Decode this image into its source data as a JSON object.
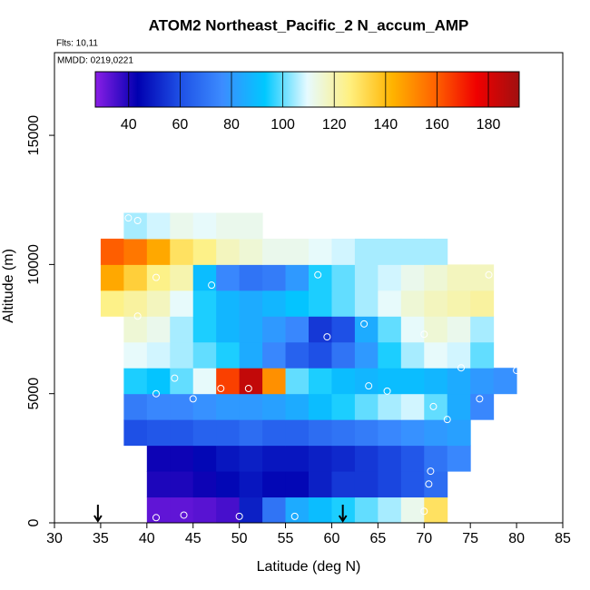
{
  "chart_data": {
    "type": "heatmap",
    "title": "ATOM2 Northeast_Pacific_2 N_accum_AMP",
    "flights": "Flts: 10,11",
    "dates": "MMDD: 0219,0221",
    "xlabel": "Latitude (deg N)",
    "ylabel": "Altitude (m)",
    "xlim": [
      30,
      85
    ],
    "xticks": [
      30,
      35,
      40,
      45,
      50,
      55,
      60,
      65,
      70,
      75,
      80,
      85
    ],
    "ylim": [
      0,
      18200
    ],
    "yticks": [
      0,
      5000,
      10000,
      15000
    ],
    "xbins": [
      35,
      37.5,
      40,
      42.5,
      45,
      47.5,
      50,
      52.5,
      55,
      57.5,
      60,
      62.5,
      65,
      67.5,
      70,
      72.5,
      75,
      77.5,
      80
    ],
    "ybins": [
      0,
      1000,
      2000,
      3000,
      4000,
      5000,
      6000,
      7000,
      8000,
      9000,
      10000,
      11000,
      12000
    ],
    "values": [
      [
        null,
        null,
        32,
        32,
        33,
        35,
        50,
        70,
        85,
        90,
        95,
        100,
        105,
        112,
        130,
        null,
        null,
        null
      ],
      [
        null,
        null,
        40,
        40,
        42,
        45,
        48,
        45,
        45,
        50,
        55,
        55,
        58,
        62,
        68,
        null,
        null,
        null
      ],
      [
        null,
        null,
        42,
        42,
        45,
        48,
        50,
        48,
        48,
        50,
        52,
        55,
        58,
        62,
        70,
        75,
        null,
        null
      ],
      [
        null,
        60,
        62,
        62,
        65,
        65,
        68,
        65,
        65,
        68,
        70,
        72,
        75,
        78,
        80,
        82,
        null,
        null
      ],
      [
        null,
        72,
        75,
        75,
        78,
        80,
        80,
        82,
        85,
        90,
        95,
        100,
        105,
        108,
        100,
        85,
        75,
        null
      ],
      [
        null,
        95,
        92,
        100,
        110,
        165,
        185,
        150,
        100,
        95,
        90,
        88,
        90,
        90,
        88,
        85,
        80,
        78
      ],
      [
        null,
        110,
        108,
        105,
        100,
        95,
        85,
        75,
        65,
        60,
        70,
        80,
        95,
        105,
        110,
        108,
        100,
        null
      ],
      [
        null,
        115,
        112,
        105,
        95,
        88,
        85,
        80,
        75,
        55,
        60,
        85,
        100,
        110,
        115,
        112,
        105,
        null
      ],
      [
        125,
        122,
        118,
        110,
        95,
        88,
        85,
        88,
        92,
        95,
        100,
        105,
        110,
        115,
        118,
        120,
        122,
        null
      ],
      [
        145,
        135,
        125,
        120,
        90,
        75,
        70,
        72,
        80,
        95,
        100,
        105,
        108,
        112,
        115,
        118,
        118,
        null
      ],
      [
        160,
        155,
        145,
        130,
        125,
        118,
        115,
        112,
        112,
        110,
        108,
        105,
        105,
        105,
        105,
        null,
        null,
        null
      ],
      [
        null,
        105,
        108,
        112,
        110,
        112,
        112,
        null,
        null,
        null,
        null,
        null,
        null,
        null,
        null,
        null,
        null,
        null
      ]
    ],
    "colorbar": {
      "lim": [
        27,
        192
      ],
      "ticks": [
        40,
        60,
        80,
        100,
        120,
        140,
        160,
        180
      ],
      "colors": [
        "#8a1ee6",
        "#0000b0",
        "#1e50e6",
        "#3c8cff",
        "#00c8ff",
        "#e6faff",
        "#fff080",
        "#ffb400",
        "#ff6400",
        "#f00000",
        "#a01010"
      ]
    },
    "points": {
      "lat": [
        41,
        44,
        50,
        56,
        70,
        70.5,
        70.7,
        72.5,
        71,
        76,
        45,
        41,
        43,
        48,
        51,
        64,
        66,
        74,
        80,
        70,
        59.5,
        63.5,
        39,
        47,
        58.5,
        41,
        77,
        78,
        38,
        39
      ],
      "alt": [
        200,
        300,
        250,
        250,
        450,
        1500,
        2000,
        4000,
        4500,
        4800,
        4800,
        5000,
        5600,
        5200,
        5200,
        5300,
        5100,
        6000,
        5900,
        7300,
        7200,
        7700,
        8000,
        9200,
        9600,
        9500,
        9600,
        9600,
        11800,
        11700
      ]
    },
    "arrows": [
      34.7,
      61.2
    ]
  }
}
